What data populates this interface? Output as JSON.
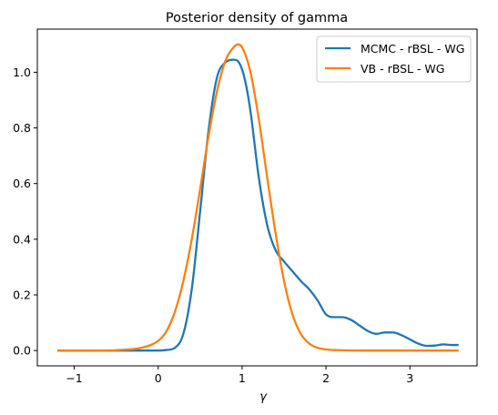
{
  "chart_data": {
    "type": "line",
    "title": "Posterior density of gamma",
    "xlabel": "γ",
    "ylabel": "",
    "xlim": [
      -1.44,
      3.8
    ],
    "ylim": [
      -0.055,
      1.155
    ],
    "xticks": [
      -1,
      0,
      1,
      2,
      3
    ],
    "xtick_labels": [
      "−1",
      "0",
      "1",
      "2",
      "3"
    ],
    "yticks": [
      0.0,
      0.2,
      0.4,
      0.6,
      0.8,
      1.0
    ],
    "ytick_labels": [
      "0.0",
      "0.2",
      "0.4",
      "0.6",
      "0.8",
      "1.0"
    ],
    "grid": false,
    "legend_position": "top-right",
    "series": [
      {
        "name": "MCMC - rBSL - WG",
        "color": "#1f77b4",
        "x": [
          -1.2,
          -0.8,
          -0.4,
          0.0,
          0.1,
          0.2,
          0.3,
          0.4,
          0.5,
          0.6,
          0.7,
          0.8,
          0.9,
          0.95,
          1.0,
          1.05,
          1.1,
          1.2,
          1.3,
          1.4,
          1.5,
          1.6,
          1.7,
          1.8,
          1.9,
          2.0,
          2.1,
          2.2,
          2.3,
          2.4,
          2.5,
          2.6,
          2.7,
          2.8,
          2.9,
          3.0,
          3.1,
          3.2,
          3.3,
          3.4,
          3.5,
          3.58
        ],
        "y": [
          0.0,
          0.0,
          0.0,
          0.0,
          0.002,
          0.01,
          0.06,
          0.22,
          0.5,
          0.79,
          0.98,
          1.035,
          1.045,
          1.04,
          1.01,
          0.95,
          0.86,
          0.62,
          0.45,
          0.36,
          0.32,
          0.285,
          0.25,
          0.22,
          0.18,
          0.13,
          0.12,
          0.12,
          0.11,
          0.09,
          0.07,
          0.06,
          0.065,
          0.065,
          0.055,
          0.04,
          0.025,
          0.017,
          0.018,
          0.022,
          0.02,
          0.02
        ]
      },
      {
        "name": "VB - rBSL - WG",
        "color": "#ff7f0e",
        "x": [
          -1.2,
          -0.8,
          -0.4,
          -0.2,
          0.0,
          0.1,
          0.2,
          0.3,
          0.4,
          0.5,
          0.6,
          0.7,
          0.8,
          0.9,
          0.95,
          1.0,
          1.1,
          1.2,
          1.3,
          1.4,
          1.5,
          1.6,
          1.7,
          1.8,
          1.9,
          2.0,
          2.2,
          2.5,
          3.0,
          3.58
        ],
        "y": [
          0.0,
          0.0,
          0.003,
          0.01,
          0.035,
          0.07,
          0.14,
          0.25,
          0.4,
          0.58,
          0.77,
          0.93,
          1.04,
          1.09,
          1.1,
          1.09,
          1.0,
          0.83,
          0.62,
          0.42,
          0.25,
          0.13,
          0.06,
          0.025,
          0.01,
          0.004,
          0.001,
          0.0,
          0.0,
          0.0
        ]
      }
    ]
  }
}
